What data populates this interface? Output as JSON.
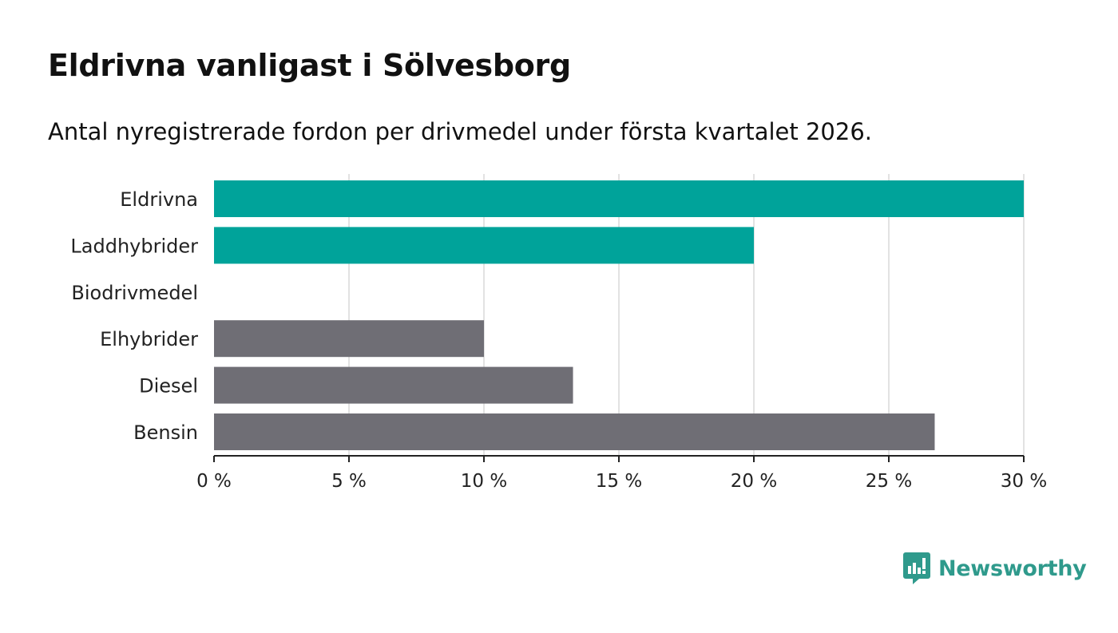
{
  "chart_data": {
    "type": "bar",
    "orientation": "horizontal",
    "title": "Eldrivna vanligast i Sölvesborg",
    "subtitle": "Antal nyregistrerade fordon per drivmedel under första kvartalet 2026.",
    "categories": [
      "Eldrivna",
      "Laddhybrider",
      "Biodrivmedel",
      "Elhybrider",
      "Diesel",
      "Bensin"
    ],
    "values": [
      30,
      20,
      0,
      10,
      13.3,
      26.7
    ],
    "bar_colors": [
      "#00a39a",
      "#00a39a",
      "#00a39a",
      "#6f6e75",
      "#6f6e75",
      "#6f6e75"
    ],
    "xlim": [
      0,
      30
    ],
    "xticks": [
      0,
      5,
      10,
      15,
      20,
      25,
      30
    ],
    "tick_labels": [
      "0 %",
      "5 %",
      "10 %",
      "15 %",
      "20 %",
      "25 %",
      "30 %"
    ],
    "xlabel": "",
    "ylabel": "",
    "grid": true
  },
  "brand": {
    "name": "Newsworthy",
    "icon": "newsworthy-logo-icon",
    "color": "#2f9a8c"
  }
}
